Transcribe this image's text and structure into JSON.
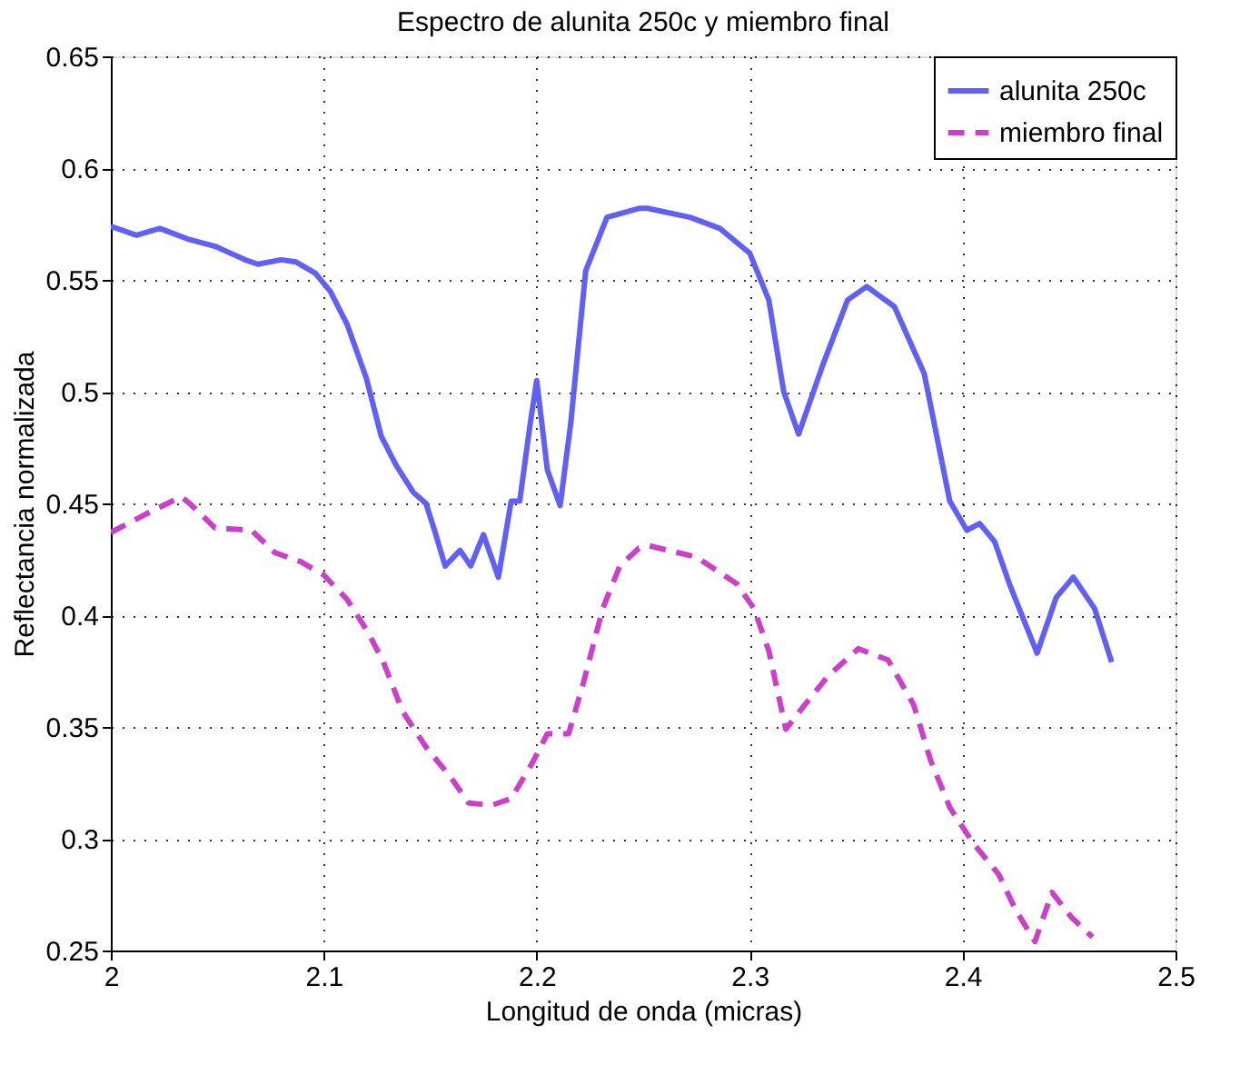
{
  "chart_data": {
    "type": "line",
    "title": "Espectro de alunita 250c y miembro final",
    "xlabel": "Longitud de onda (micras)",
    "ylabel": "Reflectancia normalizada",
    "xlim": [
      2,
      2.5
    ],
    "xticks": [
      {
        "value": 2,
        "label": "2"
      },
      2.1,
      2.2,
      2.3,
      2.4,
      2.5
    ],
    "ylim": [
      0.25,
      0.65
    ],
    "yticks": [
      0.25,
      0.3,
      0.35,
      0.4,
      0.45,
      0.5,
      0.55,
      0.6,
      0.65
    ],
    "grid": true,
    "legend": "top right",
    "marker": "none",
    "series": [
      {
        "name": "alunita 250c",
        "color": "#6060f8",
        "line_style": "solid",
        "x": [
          2.0,
          2.012,
          2.023,
          2.037,
          2.049,
          2.063,
          2.069,
          2.08,
          2.087,
          2.096,
          2.103,
          2.111,
          2.12,
          2.127,
          2.134,
          2.142,
          2.148,
          2.152,
          2.157,
          2.164,
          2.169,
          2.175,
          2.182,
          2.188,
          2.192,
          2.197,
          2.2,
          2.205,
          2.211,
          2.216,
          2.223,
          2.233,
          2.248,
          2.252,
          2.272,
          2.286,
          2.3,
          2.309,
          2.316,
          2.323,
          2.334,
          2.346,
          2.355,
          2.368,
          2.382,
          2.394,
          2.402,
          2.408,
          2.415,
          2.422,
          2.435,
          2.444,
          2.452,
          2.462,
          2.47
        ],
        "values": [
          0.574,
          0.57,
          0.573,
          0.568,
          0.565,
          0.559,
          0.557,
          0.559,
          0.558,
          0.553,
          0.545,
          0.53,
          0.506,
          0.48,
          0.467,
          0.455,
          0.45,
          0.438,
          0.422,
          0.429,
          0.422,
          0.436,
          0.417,
          0.451,
          0.451,
          0.486,
          0.505,
          0.465,
          0.449,
          0.486,
          0.554,
          0.578,
          0.582,
          0.582,
          0.578,
          0.573,
          0.562,
          0.541,
          0.5,
          0.481,
          0.511,
          0.541,
          0.547,
          0.538,
          0.508,
          0.451,
          0.438,
          0.441,
          0.433,
          0.414,
          0.383,
          0.408,
          0.417,
          0.403,
          0.379
        ]
      },
      {
        "name": "miembro final",
        "color": "#cc3fc8",
        "line_style": "dashed",
        "x": [
          2.0,
          2.016,
          2.033,
          2.037,
          2.049,
          2.066,
          2.077,
          2.089,
          2.1,
          2.111,
          2.121,
          2.128,
          2.137,
          2.148,
          2.16,
          2.168,
          2.179,
          2.188,
          2.198,
          2.205,
          2.215,
          2.222,
          2.231,
          2.239,
          2.248,
          2.253,
          2.275,
          2.294,
          2.302,
          2.309,
          2.317,
          2.326,
          2.337,
          2.351,
          2.365,
          2.377,
          2.385,
          2.394,
          2.405,
          2.417,
          2.425,
          2.434,
          2.442,
          2.451,
          2.461
        ],
        "values": [
          0.437,
          0.445,
          0.453,
          0.45,
          0.439,
          0.438,
          0.428,
          0.424,
          0.418,
          0.407,
          0.392,
          0.379,
          0.357,
          0.341,
          0.327,
          0.316,
          0.315,
          0.318,
          0.334,
          0.347,
          0.347,
          0.37,
          0.403,
          0.422,
          0.43,
          0.431,
          0.426,
          0.414,
          0.403,
          0.384,
          0.349,
          0.36,
          0.373,
          0.385,
          0.38,
          0.36,
          0.335,
          0.314,
          0.298,
          0.284,
          0.268,
          0.254,
          0.276,
          0.265,
          0.256
        ]
      }
    ]
  }
}
